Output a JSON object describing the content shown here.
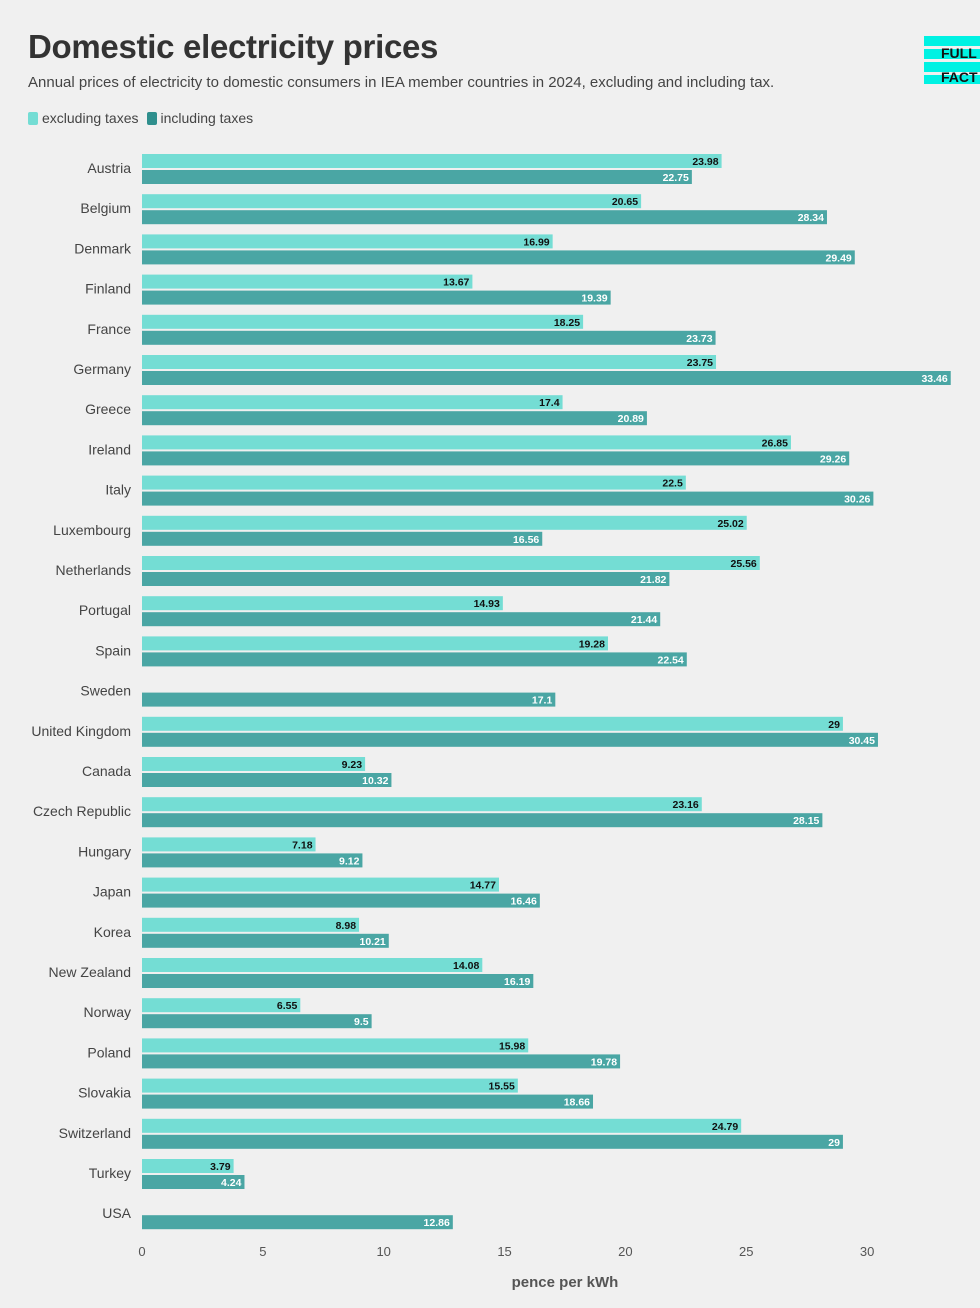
{
  "header": {
    "title": "Domestic electricity prices",
    "subtitle": "Annual prices of electricity to domestic consumers in IEA member countries in 2024, excluding and including tax."
  },
  "logo": {
    "line1": "FULL",
    "line2": "FACT"
  },
  "legend": {
    "items": [
      {
        "label": "excluding taxes",
        "color": "#74ddd4"
      },
      {
        "label": "including taxes",
        "color": "#4aa6a4"
      }
    ]
  },
  "chart_data": {
    "type": "bar",
    "orientation": "horizontal",
    "categories": [
      "Austria",
      "Belgium",
      "Denmark",
      "Finland",
      "France",
      "Germany",
      "Greece",
      "Ireland",
      "Italy",
      "Luxembourg",
      "Netherlands",
      "Portugal",
      "Spain",
      "Sweden",
      "United Kingdom",
      "Canada",
      "Czech Republic",
      "Hungary",
      "Japan",
      "Korea",
      "New Zealand",
      "Norway",
      "Poland",
      "Slovakia",
      "Switzerland",
      "Turkey",
      "USA"
    ],
    "series": [
      {
        "name": "excluding taxes",
        "color": "#74ddd4",
        "label_color": "#111111",
        "values": [
          23.98,
          20.65,
          16.99,
          13.67,
          18.25,
          23.75,
          17.4,
          26.85,
          22.5,
          25.02,
          25.56,
          14.93,
          19.28,
          null,
          29,
          9.23,
          23.16,
          7.18,
          14.77,
          8.98,
          14.08,
          6.55,
          15.98,
          15.55,
          24.79,
          3.79,
          null
        ]
      },
      {
        "name": "including taxes",
        "color": "#4aa6a4",
        "label_color": "#ffffff",
        "values": [
          22.75,
          28.34,
          29.49,
          19.39,
          23.73,
          33.46,
          20.89,
          29.26,
          30.26,
          16.56,
          21.82,
          21.44,
          22.54,
          17.1,
          30.45,
          10.32,
          28.15,
          9.12,
          16.46,
          10.21,
          16.19,
          9.5,
          19.78,
          18.66,
          29,
          4.24,
          12.86
        ]
      }
    ],
    "xlabel": "pence per kWh",
    "ylabel": "",
    "xticks": [
      0,
      5,
      10,
      15,
      20,
      25,
      30
    ],
    "xlim": [
      0,
      33.5
    ],
    "grid": false,
    "legend_position": "top-left"
  }
}
